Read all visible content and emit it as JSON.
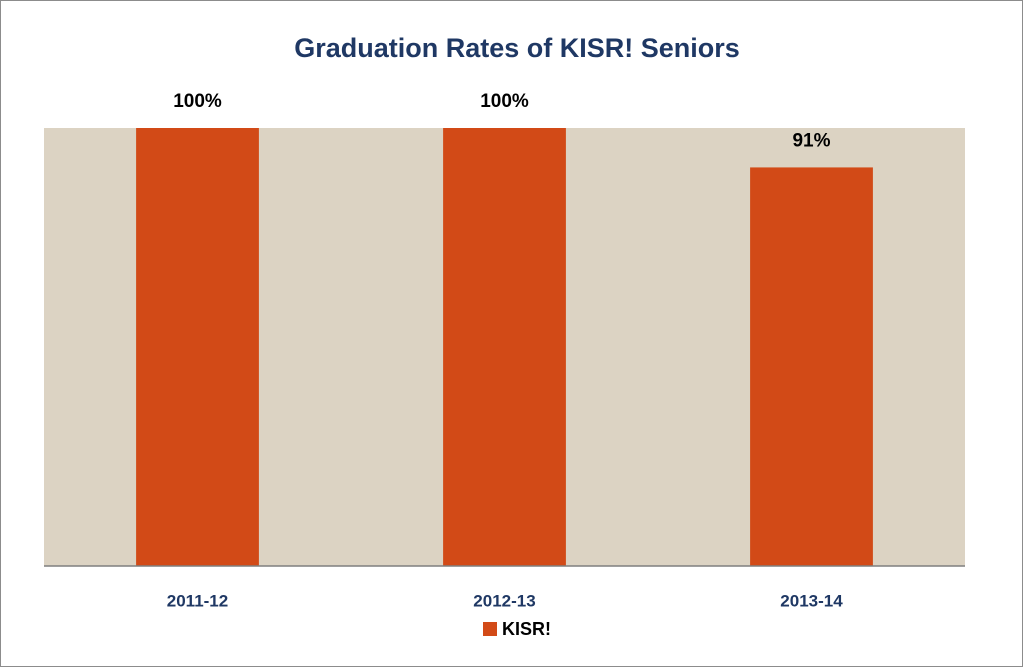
{
  "chart_data": {
    "type": "bar",
    "title": "Graduation Rates of KISR! Seniors",
    "categories": [
      "2011-12",
      "2012-13",
      "2013-14"
    ],
    "series": [
      {
        "name": "KISR!",
        "color": "#d24a17",
        "values": [
          100,
          100,
          91
        ],
        "value_labels": [
          "100%",
          "100%",
          "91%"
        ]
      }
    ],
    "ylim": [
      0,
      100
    ],
    "legend": "bottom"
  }
}
